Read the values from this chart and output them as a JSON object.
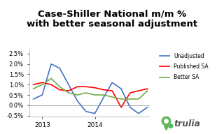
{
  "title": "Case-Shiller National m/m %\nwith better seasonal adjustment",
  "title_fontsize": 9.5,
  "background_color": "#ffffff",
  "xlim": [
    2012.75,
    2015.05
  ],
  "ylim": [
    -0.0055,
    0.027
  ],
  "yticks": [
    -0.005,
    0.0,
    0.005,
    0.01,
    0.015,
    0.02,
    0.025
  ],
  "ytick_labels": [
    "-0.5%",
    "0.0%",
    "0.5%",
    "1.0%",
    "1.5%",
    "2.0%",
    "2.5%"
  ],
  "xticks": [
    2013,
    2014
  ],
  "colors": {
    "unadjusted": "#4472C4",
    "published_sa": "#FF0000",
    "better_sa": "#70AD47"
  },
  "legend_labels": [
    "Unadjusted",
    "Published SA",
    "Better SA"
  ],
  "trulia_green": "#5cb85c",
  "x_unadjusted": [
    2012.83,
    2013.0,
    2013.17,
    2013.33,
    2013.5,
    2013.67,
    2013.83,
    2014.0,
    2014.17,
    2014.33,
    2014.5,
    2014.67,
    2014.83,
    2015.0
  ],
  "y_unadjusted": [
    0.003,
    0.005,
    0.02,
    0.018,
    0.01,
    0.002,
    -0.003,
    -0.004,
    0.004,
    0.011,
    0.008,
    -0.001,
    -0.004,
    -0.001
  ],
  "x_published_sa": [
    2012.83,
    2013.0,
    2013.17,
    2013.33,
    2013.5,
    2013.67,
    2013.83,
    2014.0,
    2014.17,
    2014.33,
    2014.5,
    2014.67,
    2014.83,
    2015.0
  ],
  "y_published_sa": [
    0.01,
    0.011,
    0.01,
    0.0075,
    0.007,
    0.009,
    0.009,
    0.0085,
    0.0075,
    0.007,
    -0.001,
    0.006,
    0.007,
    0.008
  ],
  "x_better_sa": [
    2012.83,
    2013.0,
    2013.17,
    2013.33,
    2013.5,
    2013.67,
    2013.83,
    2014.0,
    2014.17,
    2014.33,
    2014.5,
    2014.67,
    2014.83,
    2015.0
  ],
  "y_better_sa": [
    0.008,
    0.01,
    0.013,
    0.009,
    0.006,
    0.005,
    0.006,
    0.005,
    0.005,
    0.004,
    0.003,
    0.003,
    0.003,
    0.007
  ]
}
